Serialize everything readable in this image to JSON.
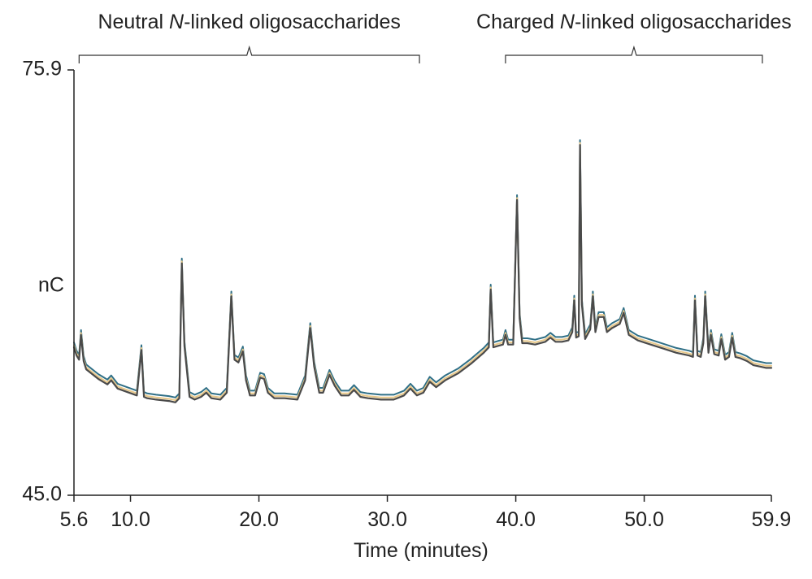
{
  "chart_data": {
    "type": "line",
    "xlabel": "Time (minutes)",
    "ylabel": "nC",
    "xlim": [
      5.6,
      59.9
    ],
    "ylim": [
      45.0,
      75.9
    ],
    "x_ticks": [
      {
        "value": 5.6,
        "label": "5.6"
      },
      {
        "value": 10.0,
        "label": "10.0"
      },
      {
        "value": 20.0,
        "label": "20.0"
      },
      {
        "value": 30.0,
        "label": "30.0"
      },
      {
        "value": 40.0,
        "label": "40.0"
      },
      {
        "value": 50.0,
        "label": "50.0"
      },
      {
        "value": 59.9,
        "label": "59.9"
      }
    ],
    "y_ticks": [
      {
        "value": 45.0,
        "label": "45.0"
      },
      {
        "value": 75.9,
        "label": "75.9"
      }
    ],
    "grid": false,
    "annotations": [
      {
        "text_pre": "Neutral ",
        "text_italic": "N",
        "text_post": "-linked oligosaccharides",
        "x_start": 6.0,
        "x_end": 32.5
      },
      {
        "text_pre": "Charged ",
        "text_italic": "N",
        "text_post": "-linked oligosaccharides",
        "x_start": 39.2,
        "x_end": 59.2
      }
    ],
    "series": [
      {
        "color": "#2f6f86",
        "offset": 0.2,
        "x": [
          5.6,
          5.8,
          6.0,
          6.15,
          6.35,
          6.55,
          7.5,
          8.2,
          8.5,
          9.0,
          10.5,
          10.85,
          11.05,
          11.3,
          12.0,
          13.0,
          13.5,
          13.8,
          14.0,
          14.2,
          14.6,
          15.0,
          15.5,
          15.9,
          16.3,
          17.0,
          17.5,
          17.85,
          18.1,
          18.4,
          18.75,
          19.0,
          19.3,
          19.7,
          20.1,
          20.4,
          20.7,
          21.2,
          22.0,
          23.0,
          23.6,
          24.0,
          24.3,
          24.7,
          25.0,
          25.5,
          25.9,
          26.4,
          27.0,
          27.4,
          27.9,
          28.5,
          29.5,
          30.5,
          31.3,
          31.8,
          32.3,
          32.8,
          33.3,
          33.8,
          34.5,
          35.5,
          36.5,
          37.5,
          37.9,
          38.05,
          38.25,
          38.6,
          39.0,
          39.2,
          39.4,
          39.8,
          40.1,
          40.3,
          40.5,
          40.9,
          41.5,
          42.3,
          42.7,
          43.1,
          43.6,
          44.1,
          44.4,
          44.55,
          44.7,
          44.9,
          45.0,
          45.15,
          45.4,
          45.8,
          46.0,
          46.2,
          46.45,
          46.85,
          47.1,
          47.5,
          48.1,
          48.4,
          48.8,
          49.5,
          50.5,
          51.5,
          52.5,
          53.5,
          53.8,
          53.95,
          54.15,
          54.4,
          54.6,
          54.75,
          55.0,
          55.2,
          55.45,
          55.8,
          56.0,
          56.3,
          56.6,
          56.85,
          57.1,
          57.5,
          58.0,
          58.5,
          59.0,
          59.5,
          59.9
        ],
        "y": [
          55.9,
          55.3,
          55.0,
          56.8,
          54.9,
          54.3,
          53.6,
          53.2,
          53.5,
          52.9,
          52.4,
          55.7,
          52.3,
          52.2,
          52.1,
          52.0,
          51.9,
          52.2,
          62.0,
          56.0,
          52.3,
          52.1,
          52.3,
          52.6,
          52.2,
          52.1,
          52.6,
          59.6,
          55.0,
          54.8,
          55.6,
          53.5,
          52.4,
          52.4,
          53.7,
          53.6,
          52.6,
          52.2,
          52.2,
          52.1,
          53.5,
          57.3,
          54.5,
          52.6,
          52.6,
          53.9,
          53.1,
          52.4,
          52.4,
          52.8,
          52.3,
          52.2,
          52.1,
          52.1,
          52.4,
          52.9,
          52.4,
          52.6,
          53.4,
          53.0,
          53.5,
          54.0,
          54.7,
          55.5,
          55.9,
          60.1,
          55.9,
          56.0,
          56.1,
          56.8,
          56.1,
          56.1,
          66.6,
          58.0,
          56.2,
          56.2,
          56.1,
          56.3,
          56.6,
          56.3,
          56.3,
          56.4,
          57.0,
          59.3,
          56.6,
          56.7,
          70.6,
          59.0,
          56.5,
          57.2,
          59.6,
          57.0,
          58.1,
          58.1,
          57.0,
          57.3,
          57.6,
          58.4,
          56.8,
          56.4,
          56.1,
          55.8,
          55.5,
          55.3,
          55.2,
          59.3,
          55.3,
          55.2,
          56.2,
          59.6,
          55.5,
          56.8,
          55.4,
          55.3,
          56.5,
          55.0,
          55.2,
          56.6,
          55.2,
          55.1,
          54.9,
          54.6,
          54.5,
          54.4,
          54.4
        ]
      },
      {
        "color": "#e7c88a",
        "offset": 0.0,
        "x": [
          5.6,
          5.8,
          6.0,
          6.15,
          6.35,
          6.55,
          7.5,
          8.2,
          8.5,
          9.0,
          10.5,
          10.85,
          11.05,
          11.3,
          12.0,
          13.0,
          13.5,
          13.8,
          14.0,
          14.2,
          14.6,
          15.0,
          15.5,
          15.9,
          16.3,
          17.0,
          17.5,
          17.85,
          18.1,
          18.4,
          18.75,
          19.0,
          19.3,
          19.7,
          20.1,
          20.4,
          20.7,
          21.2,
          22.0,
          23.0,
          23.6,
          24.0,
          24.3,
          24.7,
          25.0,
          25.5,
          25.9,
          26.4,
          27.0,
          27.4,
          27.9,
          28.5,
          29.5,
          30.5,
          31.3,
          31.8,
          32.3,
          32.8,
          33.3,
          33.8,
          34.5,
          35.5,
          36.5,
          37.5,
          37.9,
          38.05,
          38.25,
          38.6,
          39.0,
          39.2,
          39.4,
          39.8,
          40.1,
          40.3,
          40.5,
          40.9,
          41.5,
          42.3,
          42.7,
          43.1,
          43.6,
          44.1,
          44.4,
          44.55,
          44.7,
          44.9,
          45.0,
          45.15,
          45.4,
          45.8,
          46.0,
          46.2,
          46.45,
          46.85,
          47.1,
          47.5,
          48.1,
          48.4,
          48.8,
          49.5,
          50.5,
          51.5,
          52.5,
          53.5,
          53.8,
          53.95,
          54.15,
          54.4,
          54.6,
          54.75,
          55.0,
          55.2,
          55.45,
          55.8,
          56.0,
          56.3,
          56.6,
          56.85,
          57.1,
          57.5,
          58.0,
          58.5,
          59.0,
          59.5,
          59.9
        ],
        "y": [
          55.9,
          55.3,
          55.0,
          56.8,
          54.9,
          54.3,
          53.6,
          53.2,
          53.5,
          52.9,
          52.4,
          55.7,
          52.3,
          52.2,
          52.1,
          52.0,
          51.9,
          52.2,
          62.0,
          56.0,
          52.3,
          52.1,
          52.3,
          52.6,
          52.2,
          52.1,
          52.6,
          59.6,
          55.0,
          54.8,
          55.6,
          53.5,
          52.4,
          52.4,
          53.7,
          53.6,
          52.6,
          52.2,
          52.2,
          52.1,
          53.5,
          57.3,
          54.5,
          52.6,
          52.6,
          53.9,
          53.1,
          52.4,
          52.4,
          52.8,
          52.3,
          52.2,
          52.1,
          52.1,
          52.4,
          52.9,
          52.4,
          52.6,
          53.4,
          53.0,
          53.5,
          54.0,
          54.7,
          55.5,
          55.9,
          60.1,
          55.9,
          56.0,
          56.1,
          56.8,
          56.1,
          56.1,
          66.6,
          58.0,
          56.2,
          56.2,
          56.1,
          56.3,
          56.6,
          56.3,
          56.3,
          56.4,
          57.0,
          59.3,
          56.6,
          56.7,
          70.6,
          59.0,
          56.5,
          57.2,
          59.6,
          57.0,
          58.1,
          58.1,
          57.0,
          57.3,
          57.6,
          58.4,
          56.8,
          56.4,
          56.1,
          55.8,
          55.5,
          55.3,
          55.2,
          59.3,
          55.3,
          55.2,
          56.2,
          59.6,
          55.5,
          56.8,
          55.4,
          55.3,
          56.5,
          55.0,
          55.2,
          56.6,
          55.2,
          55.1,
          54.9,
          54.6,
          54.5,
          54.4,
          54.4
        ]
      },
      {
        "color": "#4a4a4a",
        "offset": -0.15,
        "x": [
          5.6,
          5.8,
          6.0,
          6.15,
          6.35,
          6.55,
          7.5,
          8.2,
          8.5,
          9.0,
          10.5,
          10.85,
          11.05,
          11.3,
          12.0,
          13.0,
          13.5,
          13.8,
          14.0,
          14.2,
          14.6,
          15.0,
          15.5,
          15.9,
          16.3,
          17.0,
          17.5,
          17.85,
          18.1,
          18.4,
          18.75,
          19.0,
          19.3,
          19.7,
          20.1,
          20.4,
          20.7,
          21.2,
          22.0,
          23.0,
          23.6,
          24.0,
          24.3,
          24.7,
          25.0,
          25.5,
          25.9,
          26.4,
          27.0,
          27.4,
          27.9,
          28.5,
          29.5,
          30.5,
          31.3,
          31.8,
          32.3,
          32.8,
          33.3,
          33.8,
          34.5,
          35.5,
          36.5,
          37.5,
          37.9,
          38.05,
          38.25,
          38.6,
          39.0,
          39.2,
          39.4,
          39.8,
          40.1,
          40.3,
          40.5,
          40.9,
          41.5,
          42.3,
          42.7,
          43.1,
          43.6,
          44.1,
          44.4,
          44.55,
          44.7,
          44.9,
          45.0,
          45.15,
          45.4,
          45.8,
          46.0,
          46.2,
          46.45,
          46.85,
          47.1,
          47.5,
          48.1,
          48.4,
          48.8,
          49.5,
          50.5,
          51.5,
          52.5,
          53.5,
          53.8,
          53.95,
          54.15,
          54.4,
          54.6,
          54.75,
          55.0,
          55.2,
          55.45,
          55.8,
          56.0,
          56.3,
          56.6,
          56.85,
          57.1,
          57.5,
          58.0,
          58.5,
          59.0,
          59.5,
          59.9
        ],
        "y": [
          55.9,
          55.3,
          55.0,
          56.8,
          54.9,
          54.3,
          53.6,
          53.2,
          53.5,
          52.9,
          52.4,
          55.7,
          52.3,
          52.2,
          52.1,
          52.0,
          51.9,
          52.2,
          62.0,
          56.0,
          52.3,
          52.1,
          52.3,
          52.6,
          52.2,
          52.1,
          52.6,
          59.6,
          55.0,
          54.8,
          55.6,
          53.5,
          52.4,
          52.4,
          53.7,
          53.6,
          52.6,
          52.2,
          52.2,
          52.1,
          53.5,
          57.3,
          54.5,
          52.6,
          52.6,
          53.9,
          53.1,
          52.4,
          52.4,
          52.8,
          52.3,
          52.2,
          52.1,
          52.1,
          52.4,
          52.9,
          52.4,
          52.6,
          53.4,
          53.0,
          53.5,
          54.0,
          54.7,
          55.5,
          55.9,
          60.1,
          55.9,
          56.0,
          56.1,
          56.8,
          56.1,
          56.1,
          66.6,
          58.0,
          56.2,
          56.2,
          56.1,
          56.3,
          56.6,
          56.3,
          56.3,
          56.4,
          57.0,
          59.3,
          56.6,
          56.7,
          70.6,
          59.0,
          56.5,
          57.2,
          59.6,
          57.0,
          58.1,
          58.1,
          57.0,
          57.3,
          57.6,
          58.4,
          56.8,
          56.4,
          56.1,
          55.8,
          55.5,
          55.3,
          55.2,
          59.3,
          55.3,
          55.2,
          56.2,
          59.6,
          55.5,
          56.8,
          55.4,
          55.3,
          56.5,
          55.0,
          55.2,
          56.6,
          55.2,
          55.1,
          54.9,
          54.6,
          54.5,
          54.4,
          54.4
        ]
      }
    ]
  }
}
